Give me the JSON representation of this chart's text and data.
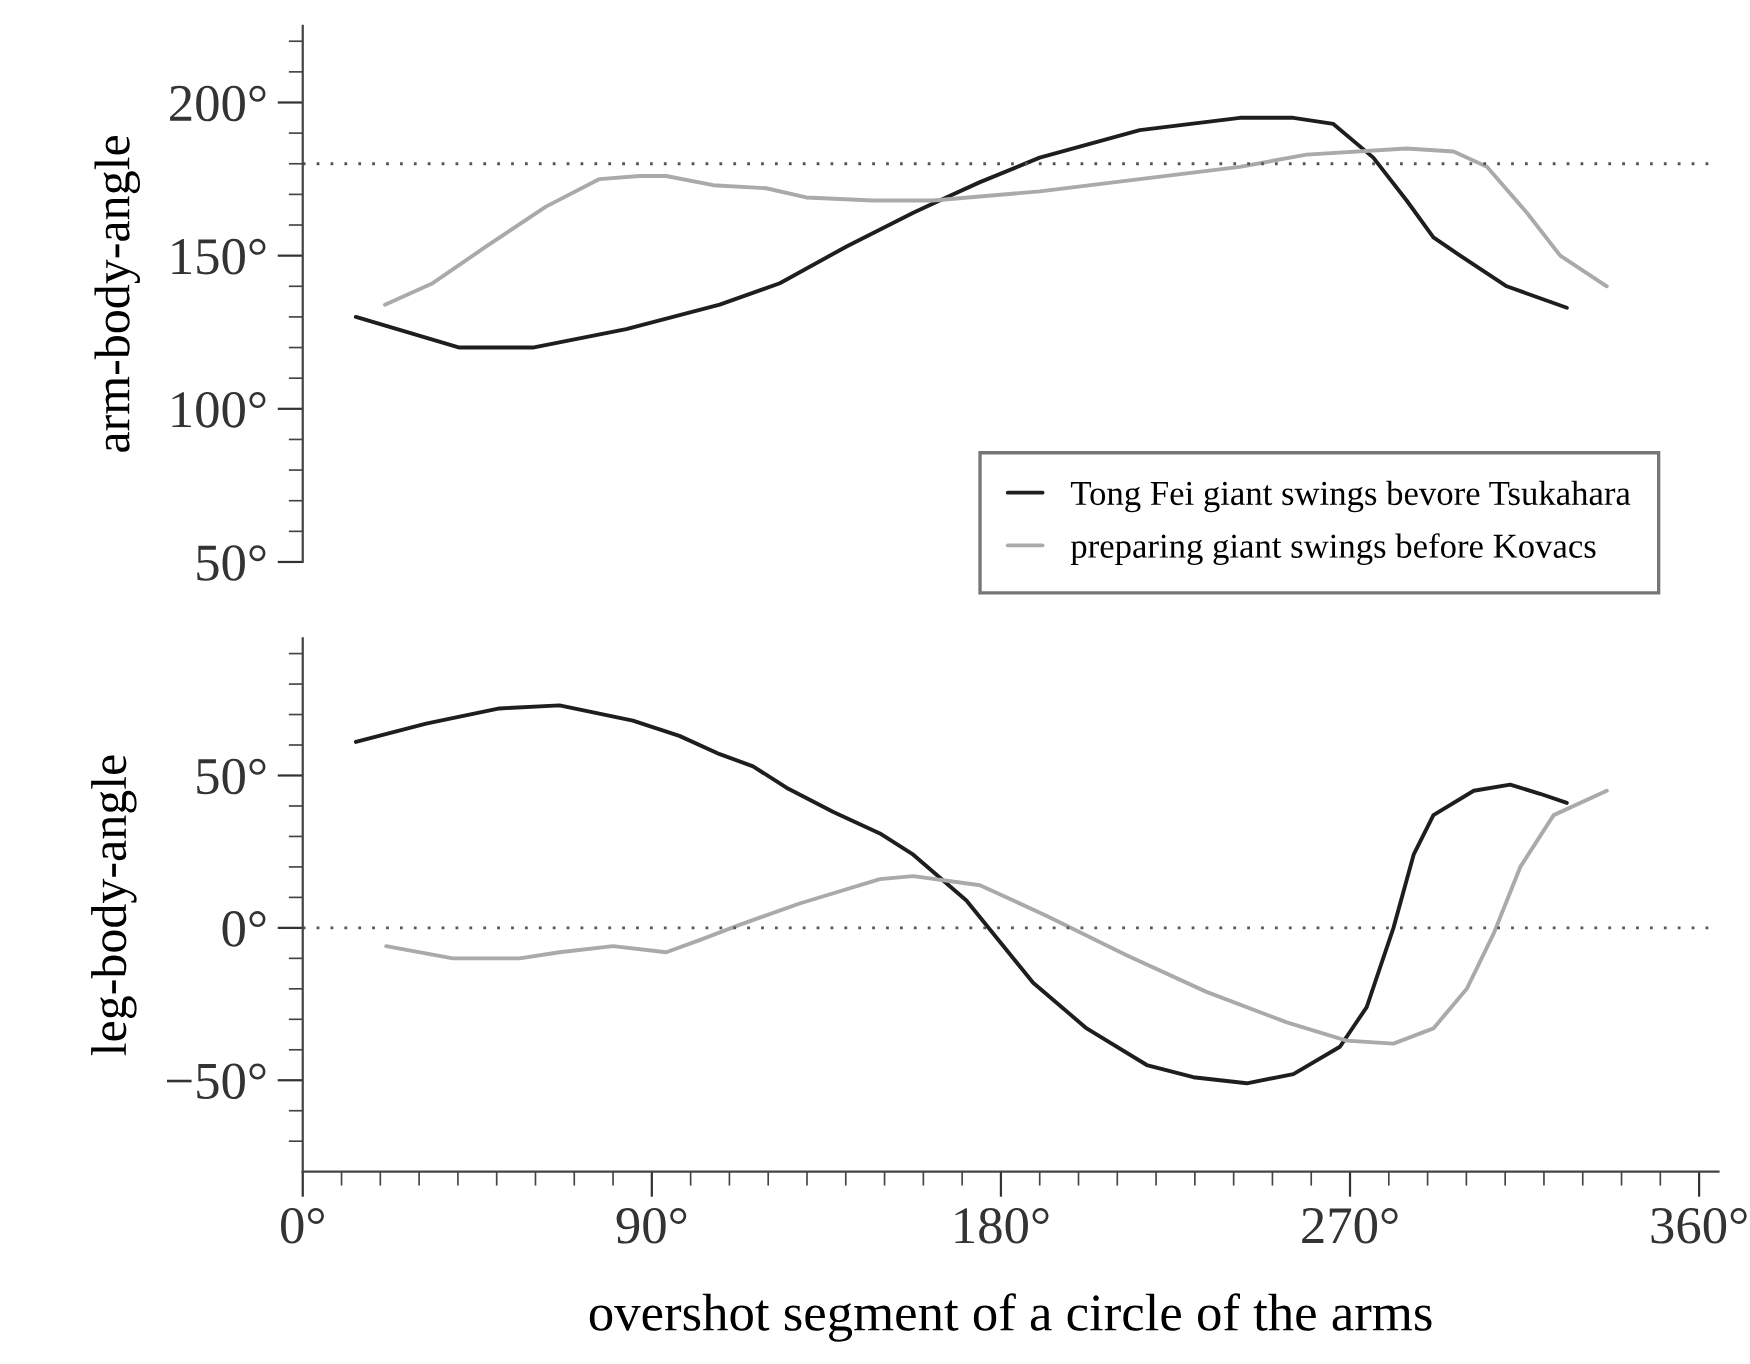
{
  "chart_data": [
    {
      "type": "line",
      "ylabel": "arm-body-angle",
      "xlim": [
        0,
        365
      ],
      "ylim": [
        50,
        225
      ],
      "tick_labels": "y",
      "legend": "bottom right",
      "grid": false,
      "yticks": [
        {
          "value": 50,
          "label": "50°"
        },
        {
          "value": 60,
          "label": null
        },
        {
          "value": 70,
          "label": null
        },
        {
          "value": 80,
          "label": null
        },
        {
          "value": 90,
          "label": null
        },
        {
          "value": 100,
          "label": "100°"
        },
        {
          "value": 110,
          "label": null
        },
        {
          "value": 120,
          "label": null
        },
        {
          "value": 130,
          "label": null
        },
        {
          "value": 140,
          "label": null
        },
        {
          "value": 150,
          "label": "150°"
        },
        {
          "value": 160,
          "label": null
        },
        {
          "value": 170,
          "label": null
        },
        {
          "value": 180,
          "label": null
        },
        {
          "value": 190,
          "label": null
        },
        {
          "value": 200,
          "label": "200°"
        },
        {
          "value": 210,
          "label": null
        },
        {
          "value": 220,
          "label": null
        }
      ],
      "ref_lines": [
        {
          "axis": "y",
          "value": 180,
          "label": null,
          "color": "#555555",
          "line_style": "dotted"
        }
      ],
      "series": [
        {
          "name": "Tong Fei giant swings bevore Tsukahara",
          "color": "#1e1e1e",
          "x": [
            13.7,
            40.4,
            59.3,
            83.4,
            107.5,
            123,
            140.2,
            157.4,
            164.2,
            174.6,
            190,
            215.8,
            241.6,
            255.4,
            265.7,
            276,
            284.6,
            291.5,
            298.4,
            310.4,
            325.9
          ],
          "values": [
            130,
            120,
            120,
            126,
            134,
            141,
            153,
            164,
            168,
            174,
            182,
            191,
            195,
            195,
            193,
            182,
            168,
            156,
            150,
            140,
            133
          ]
        },
        {
          "name": "preparing giant swings before Kovacs",
          "color": "#aaaaaa",
          "x": [
            21.2,
            33.5,
            47.3,
            62.7,
            76.5,
            86.8,
            93.7,
            105.8,
            119.5,
            129.8,
            147,
            162.5,
            190,
            215.8,
            241.6,
            258.8,
            284.6,
            296.7,
            305.3,
            315.6,
            324.2,
            336.2
          ],
          "values": [
            134,
            141,
            153,
            166,
            175,
            176,
            176,
            173,
            172,
            169,
            168,
            168,
            171,
            175,
            179,
            183,
            185,
            184,
            179,
            164,
            150,
            140
          ]
        }
      ]
    },
    {
      "type": "line",
      "ylabel": "leg-body-angle",
      "xlabel": "overshot segment of a circle of the arms",
      "xlim": [
        0,
        365
      ],
      "ylim": [
        -80,
        95
      ],
      "grid": false,
      "xticks": [
        {
          "value": 0,
          "label": "0°"
        },
        {
          "value": 10,
          "label": null
        },
        {
          "value": 20,
          "label": null
        },
        {
          "value": 30,
          "label": null
        },
        {
          "value": 40,
          "label": null
        },
        {
          "value": 50,
          "label": null
        },
        {
          "value": 60,
          "label": null
        },
        {
          "value": 70,
          "label": null
        },
        {
          "value": 80,
          "label": null
        },
        {
          "value": 90,
          "label": "90°"
        },
        {
          "value": 100,
          "label": null
        },
        {
          "value": 110,
          "label": null
        },
        {
          "value": 120,
          "label": null
        },
        {
          "value": 130,
          "label": null
        },
        {
          "value": 140,
          "label": null
        },
        {
          "value": 150,
          "label": null
        },
        {
          "value": 160,
          "label": null
        },
        {
          "value": 170,
          "label": null
        },
        {
          "value": 180,
          "label": "180°"
        },
        {
          "value": 190,
          "label": null
        },
        {
          "value": 200,
          "label": null
        },
        {
          "value": 210,
          "label": null
        },
        {
          "value": 220,
          "label": null
        },
        {
          "value": 230,
          "label": null
        },
        {
          "value": 240,
          "label": null
        },
        {
          "value": 250,
          "label": null
        },
        {
          "value": 260,
          "label": null
        },
        {
          "value": 270,
          "label": "270°"
        },
        {
          "value": 280,
          "label": null
        },
        {
          "value": 290,
          "label": null
        },
        {
          "value": 300,
          "label": null
        },
        {
          "value": 310,
          "label": null
        },
        {
          "value": 320,
          "label": null
        },
        {
          "value": 330,
          "label": null
        },
        {
          "value": 340,
          "label": null
        },
        {
          "value": 350,
          "label": null
        },
        {
          "value": 360,
          "label": "360°"
        }
      ],
      "yticks": [
        {
          "value": -70,
          "label": null
        },
        {
          "value": -60,
          "label": null
        },
        {
          "value": -50,
          "label": "−50°"
        },
        {
          "value": -40,
          "label": null
        },
        {
          "value": -30,
          "label": null
        },
        {
          "value": -20,
          "label": null
        },
        {
          "value": -10,
          "label": null
        },
        {
          "value": 0,
          "label": "0°"
        },
        {
          "value": 10,
          "label": null
        },
        {
          "value": 20,
          "label": null
        },
        {
          "value": 30,
          "label": null
        },
        {
          "value": 40,
          "label": null
        },
        {
          "value": 50,
          "label": "50°"
        },
        {
          "value": 60,
          "label": null
        },
        {
          "value": 70,
          "label": null
        },
        {
          "value": 80,
          "label": null
        },
        {
          "value": 90,
          "label": null
        }
      ],
      "ref_lines": [
        {
          "axis": "y",
          "value": 0,
          "label": null,
          "color": "#555555",
          "line_style": "dotted"
        }
      ],
      "series": [
        {
          "color": "#1e1e1e",
          "x": [
            13.7,
            31.8,
            50.7,
            66.2,
            85.1,
            97.1,
            107.5,
            116.1,
            124.7,
            136.8,
            148.8,
            157.4,
            171.1,
            188.3,
            202.1,
            217.6,
            229.6,
            243.4,
            255.4,
            267.4,
            274.3,
            281.2,
            286.4,
            291.5,
            301.9,
            311.3,
            319,
            325.9
          ],
          "values": [
            61,
            67,
            72,
            73,
            68,
            63,
            57,
            53,
            46,
            38,
            31,
            24,
            9,
            -18,
            -33,
            -45,
            -49,
            -51,
            -48,
            -39,
            -26,
            0,
            24,
            37,
            45,
            47,
            44,
            41
          ]
        },
        {
          "color": "#aaaaaa",
          "x": [
            21.5,
            38.7,
            55.9,
            66.2,
            80,
            93.7,
            102.3,
            112.6,
            128.1,
            148.8,
            157.4,
            174.6,
            191.7,
            212.4,
            233,
            253.7,
            269.1,
            281.2,
            291.5,
            300.1,
            307,
            313.9,
            322.5,
            336.2
          ],
          "values": [
            -6,
            -10,
            -10,
            -8,
            -6,
            -8,
            -4,
            1,
            8,
            16,
            17,
            14,
            4,
            -9,
            -21,
            -31,
            -37,
            -38,
            -33,
            -20,
            -2,
            20,
            37,
            45
          ]
        }
      ]
    }
  ]
}
